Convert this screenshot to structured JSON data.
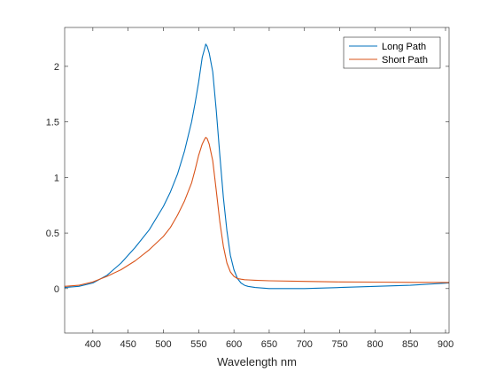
{
  "chart_data": {
    "type": "line",
    "title": "",
    "xlabel": "Wavelength nm",
    "ylabel": "",
    "xlim": [
      360,
      905
    ],
    "ylim": [
      -0.4,
      2.35
    ],
    "xticks": [
      400,
      450,
      500,
      550,
      600,
      650,
      700,
      750,
      800,
      850,
      900
    ],
    "xtick_labels": [
      "400",
      "450",
      "500",
      "550",
      "600",
      "650",
      "700",
      "750",
      "800",
      "850",
      "900"
    ],
    "yticks": [
      0,
      0.5,
      1,
      1.5,
      2
    ],
    "ytick_labels": [
      "0",
      "0.5",
      "1",
      "1.5",
      "2"
    ],
    "grid": false,
    "legend_position": "top-right",
    "series": [
      {
        "name": "Long Path",
        "color": "#0072BD",
        "x": [
          360,
          380,
          400,
          420,
          440,
          460,
          480,
          500,
          510,
          520,
          530,
          540,
          545,
          550,
          555,
          558,
          560,
          562,
          565,
          570,
          575,
          580,
          585,
          590,
          595,
          600,
          605,
          610,
          615,
          620,
          630,
          650,
          700,
          750,
          800,
          850,
          905
        ],
        "y": [
          0.01,
          0.02,
          0.05,
          0.12,
          0.23,
          0.37,
          0.53,
          0.74,
          0.87,
          1.03,
          1.24,
          1.5,
          1.67,
          1.86,
          2.08,
          2.15,
          2.2,
          2.18,
          2.12,
          1.95,
          1.6,
          1.2,
          0.82,
          0.52,
          0.3,
          0.17,
          0.09,
          0.05,
          0.03,
          0.02,
          0.01,
          0.0,
          0.0,
          0.01,
          0.02,
          0.03,
          0.05
        ]
      },
      {
        "name": "Short Path",
        "color": "#D95319",
        "x": [
          360,
          380,
          400,
          420,
          440,
          460,
          480,
          500,
          510,
          520,
          530,
          540,
          545,
          550,
          555,
          558,
          560,
          562,
          565,
          570,
          575,
          580,
          585,
          590,
          595,
          600,
          605,
          610,
          615,
          620,
          630,
          650,
          700,
          750,
          800,
          850,
          905
        ],
        "y": [
          0.02,
          0.03,
          0.06,
          0.11,
          0.17,
          0.25,
          0.35,
          0.47,
          0.55,
          0.66,
          0.79,
          0.95,
          1.07,
          1.2,
          1.3,
          1.34,
          1.36,
          1.35,
          1.3,
          1.15,
          0.88,
          0.6,
          0.38,
          0.23,
          0.15,
          0.11,
          0.09,
          0.085,
          0.08,
          0.078,
          0.075,
          0.07,
          0.065,
          0.06,
          0.058,
          0.056,
          0.055
        ]
      }
    ]
  }
}
